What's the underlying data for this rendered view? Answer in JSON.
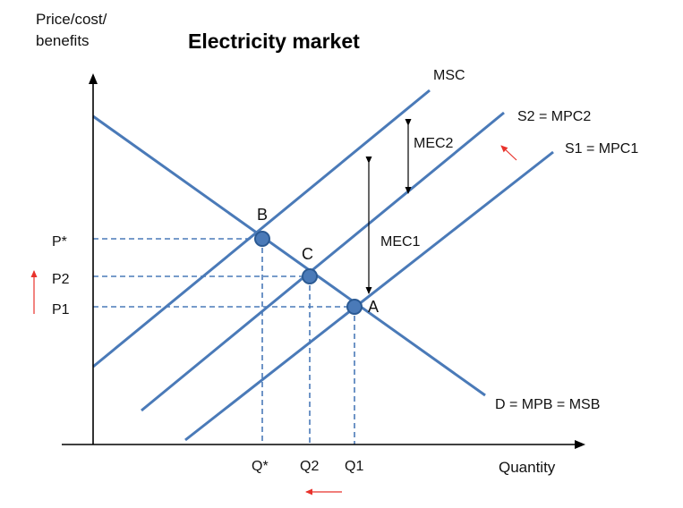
{
  "title": "Electricity market",
  "y_axis_label": {
    "line1": "Price/cost/",
    "line2": "benefits"
  },
  "x_axis_label": "Quantity",
  "curves": {
    "msc": "MSC",
    "s2": "S2 =  MPC2",
    "s1": "S1 = MPC1",
    "demand": "D = MPB = MSB"
  },
  "points": {
    "a": "A",
    "b": "B",
    "c": "C"
  },
  "price_labels": {
    "p_star": "P*",
    "p2": "P2",
    "p1": "P1"
  },
  "quantity_labels": {
    "q_star": "Q*",
    "q2": "Q2",
    "q1": "Q1"
  },
  "gaps": {
    "mec2": "MEC2",
    "mec1": "MEC1"
  },
  "colors": {
    "line": "#4a7ab8",
    "point_fill": "#4a7ab8",
    "point_stroke": "#2b5a93",
    "axis": "#000000",
    "shift_arrow": "#e8322b"
  }
}
